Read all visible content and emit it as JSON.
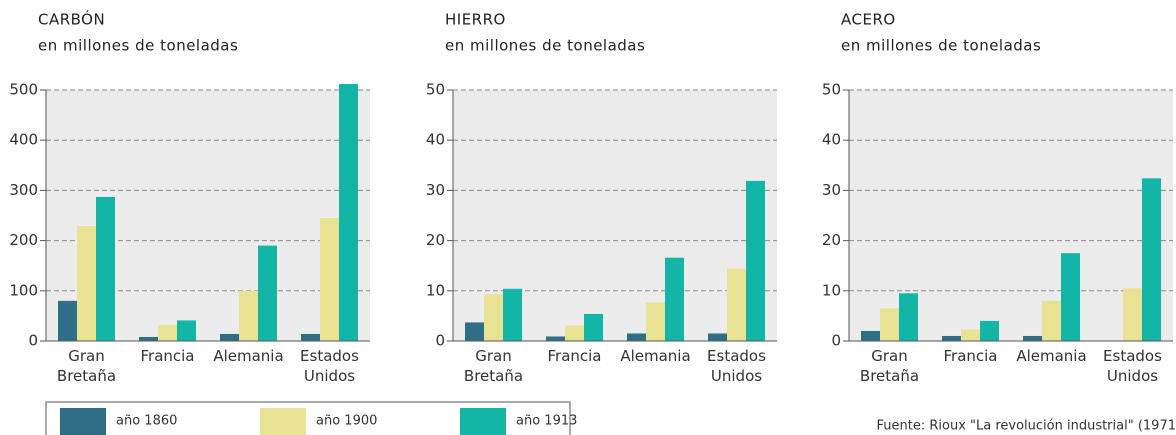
{
  "chart_data": [
    {
      "type": "bar",
      "title": "CARBÓN",
      "subtitle": "en millones de toneladas",
      "categories": [
        "Gran Bretaña",
        "Francia",
        "Alemania",
        "Estados Unidos"
      ],
      "series": [
        {
          "name": "año 1860",
          "color": "#2e6f86",
          "values": [
            80,
            8,
            14,
            14
          ]
        },
        {
          "name": "año 1900",
          "color": "#e8e294",
          "values": [
            229,
            32,
            100,
            245
          ]
        },
        {
          "name": "año 1913",
          "color": "#12b5a6",
          "values": [
            287,
            41,
            190,
            512
          ]
        }
      ],
      "ylim": [
        0,
        500
      ],
      "yticks": [
        0,
        100,
        200,
        300,
        400,
        500
      ],
      "grid": true
    },
    {
      "type": "bar",
      "title": "HIERRO",
      "subtitle": "en millones de toneladas",
      "categories": [
        "Gran Bretaña",
        "Francia",
        "Alemania",
        "Estados Unidos"
      ],
      "series": [
        {
          "color": "#2e6f86",
          "values": [
            3.7,
            0.9,
            1.5,
            1.5
          ]
        },
        {
          "color": "#e8e294",
          "values": [
            9.3,
            3.1,
            7.7,
            14.4
          ]
        },
        {
          "color": "#12b5a6",
          "values": [
            10.4,
            5.4,
            16.6,
            31.9
          ]
        }
      ],
      "ylim": [
        0,
        50
      ],
      "yticks": [
        0,
        10,
        20,
        30,
        40,
        50
      ],
      "grid": true
    },
    {
      "type": "bar",
      "title": "ACERO",
      "subtitle": "en millones de toneladas",
      "categories": [
        "Gran Bretaña",
        "Francia",
        "Alemania",
        "Estados Unidos"
      ],
      "series": [
        {
          "color": "#2e6f86",
          "values": [
            2.0,
            1.0,
            1.0,
            null
          ]
        },
        {
          "color": "#e8e294",
          "values": [
            6.5,
            2.3,
            8.0,
            10.5
          ]
        },
        {
          "color": "#12b5a6",
          "values": [
            9.5,
            4.0,
            17.5,
            32.4
          ]
        }
      ],
      "ylim": [
        0,
        50
      ],
      "yticks": [
        0,
        10,
        20,
        30,
        40,
        50
      ],
      "grid": true
    }
  ],
  "source": "Fuente: Rioux \"La revolución industrial\" (1971"
}
